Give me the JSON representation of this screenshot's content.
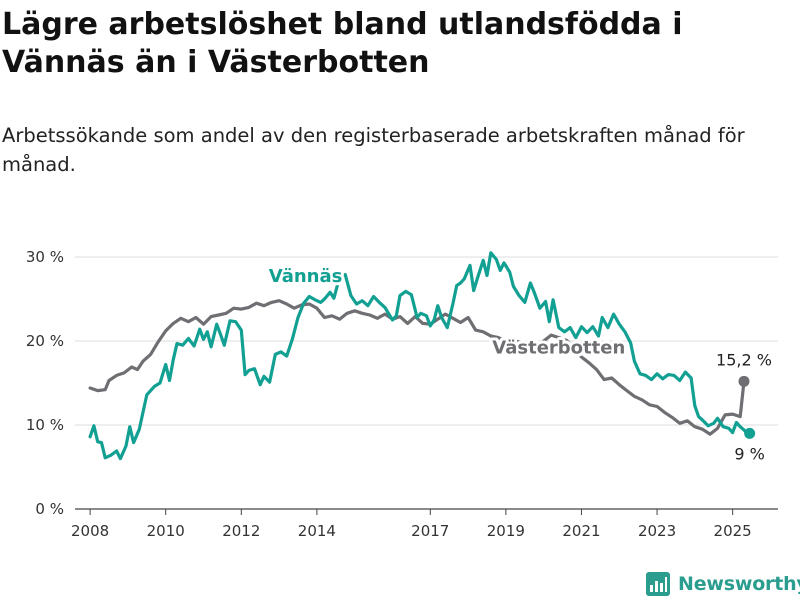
{
  "title": "Lägre arbetslöshet bland utlandsfödda i Vännäs än i Västerbotten",
  "subtitle": "Arbetssökande som andel av den registerbaserade arbetskraften månad för månad.",
  "brand": {
    "name": "Newsworthy",
    "icon": "newsworthy-logo-icon",
    "color": "#2a9d8f"
  },
  "chart_data": {
    "type": "line",
    "title": "Lägre arbetslöshet bland utlandsfödda i Vännäs än i Västerbotten",
    "subtitle": "Arbetssökande som andel av den registerbaserade arbetskraften månad för månad.",
    "xlabel": "",
    "ylabel": "",
    "xlim": [
      2007.6,
      2026.2
    ],
    "ylim": [
      0,
      30
    ],
    "x_ticks": [
      2008,
      2010,
      2012,
      2014,
      2017,
      2019,
      2021,
      2023,
      2025
    ],
    "y_ticks": [
      {
        "value": 0,
        "label": "0 %"
      },
      {
        "value": 10,
        "label": "10 %"
      },
      {
        "value": 20,
        "label": "20 %"
      },
      {
        "value": 30,
        "label": "30 %"
      }
    ],
    "grid": true,
    "series": [
      {
        "name": "Västerbotten",
        "color": "#6e6e73",
        "end_label": "15,2 %",
        "points": [
          [
            2008.0,
            14.4
          ],
          [
            2008.2,
            14.1
          ],
          [
            2008.4,
            14.2
          ],
          [
            2008.5,
            15.3
          ],
          [
            2008.7,
            15.9
          ],
          [
            2008.9,
            16.2
          ],
          [
            2009.1,
            16.9
          ],
          [
            2009.25,
            16.6
          ],
          [
            2009.4,
            17.6
          ],
          [
            2009.6,
            18.4
          ],
          [
            2009.8,
            19.9
          ],
          [
            2010.0,
            21.2
          ],
          [
            2010.2,
            22.1
          ],
          [
            2010.4,
            22.7
          ],
          [
            2010.6,
            22.3
          ],
          [
            2010.8,
            22.8
          ],
          [
            2011.0,
            22.0
          ],
          [
            2011.2,
            22.9
          ],
          [
            2011.4,
            23.1
          ],
          [
            2011.6,
            23.3
          ],
          [
            2011.8,
            23.9
          ],
          [
            2012.0,
            23.8
          ],
          [
            2012.2,
            24.0
          ],
          [
            2012.4,
            24.5
          ],
          [
            2012.6,
            24.2
          ],
          [
            2012.8,
            24.6
          ],
          [
            2013.0,
            24.8
          ],
          [
            2013.2,
            24.4
          ],
          [
            2013.4,
            23.9
          ],
          [
            2013.6,
            24.3
          ],
          [
            2013.8,
            24.4
          ],
          [
            2014.0,
            23.9
          ],
          [
            2014.2,
            22.8
          ],
          [
            2014.4,
            23.0
          ],
          [
            2014.6,
            22.6
          ],
          [
            2014.8,
            23.3
          ],
          [
            2015.0,
            23.6
          ],
          [
            2015.2,
            23.3
          ],
          [
            2015.4,
            23.1
          ],
          [
            2015.6,
            22.7
          ],
          [
            2015.8,
            23.2
          ],
          [
            2016.0,
            22.6
          ],
          [
            2016.2,
            22.9
          ],
          [
            2016.4,
            22.1
          ],
          [
            2016.6,
            22.9
          ],
          [
            2016.8,
            22.1
          ],
          [
            2017.0,
            22.0
          ],
          [
            2017.2,
            22.6
          ],
          [
            2017.4,
            23.2
          ],
          [
            2017.6,
            22.7
          ],
          [
            2017.8,
            22.2
          ],
          [
            2018.0,
            22.8
          ],
          [
            2018.2,
            21.3
          ],
          [
            2018.4,
            21.1
          ],
          [
            2018.6,
            20.6
          ],
          [
            2018.8,
            20.4
          ],
          [
            2019.0,
            20.0
          ],
          [
            2019.2,
            20.1
          ],
          [
            2019.4,
            19.8
          ],
          [
            2019.6,
            19.3
          ],
          [
            2019.8,
            19.5
          ],
          [
            2020.0,
            20.0
          ],
          [
            2020.2,
            20.7
          ],
          [
            2020.4,
            20.4
          ],
          [
            2020.6,
            20.1
          ],
          [
            2020.8,
            19.2
          ],
          [
            2021.0,
            18.1
          ],
          [
            2021.2,
            17.4
          ],
          [
            2021.4,
            16.6
          ],
          [
            2021.6,
            15.4
          ],
          [
            2021.8,
            15.6
          ],
          [
            2022.0,
            14.8
          ],
          [
            2022.2,
            14.1
          ],
          [
            2022.4,
            13.4
          ],
          [
            2022.6,
            13.0
          ],
          [
            2022.8,
            12.4
          ],
          [
            2023.0,
            12.2
          ],
          [
            2023.2,
            11.5
          ],
          [
            2023.4,
            10.9
          ],
          [
            2023.6,
            10.2
          ],
          [
            2023.8,
            10.5
          ],
          [
            2024.0,
            9.8
          ],
          [
            2024.2,
            9.5
          ],
          [
            2024.4,
            8.9
          ],
          [
            2024.6,
            9.6
          ],
          [
            2024.8,
            11.2
          ],
          [
            2025.0,
            11.3
          ],
          [
            2025.2,
            11.0
          ],
          [
            2025.3,
            15.2
          ]
        ]
      },
      {
        "name": "Vännäs",
        "color": "#12a093",
        "end_label": "9 %",
        "points": [
          [
            2008.0,
            8.6
          ],
          [
            2008.1,
            9.9
          ],
          [
            2008.2,
            8.0
          ],
          [
            2008.3,
            7.9
          ],
          [
            2008.4,
            6.1
          ],
          [
            2008.55,
            6.4
          ],
          [
            2008.7,
            6.9
          ],
          [
            2008.8,
            6.0
          ],
          [
            2008.95,
            7.5
          ],
          [
            2009.05,
            9.8
          ],
          [
            2009.15,
            7.9
          ],
          [
            2009.3,
            9.5
          ],
          [
            2009.5,
            13.6
          ],
          [
            2009.7,
            14.6
          ],
          [
            2009.85,
            15.0
          ],
          [
            2010.0,
            17.2
          ],
          [
            2010.1,
            15.3
          ],
          [
            2010.2,
            17.8
          ],
          [
            2010.3,
            19.7
          ],
          [
            2010.45,
            19.5
          ],
          [
            2010.6,
            20.3
          ],
          [
            2010.75,
            19.4
          ],
          [
            2010.9,
            21.4
          ],
          [
            2011.0,
            20.2
          ],
          [
            2011.1,
            21.1
          ],
          [
            2011.2,
            19.3
          ],
          [
            2011.35,
            22.0
          ],
          [
            2011.45,
            20.8
          ],
          [
            2011.55,
            19.5
          ],
          [
            2011.7,
            22.4
          ],
          [
            2011.85,
            22.3
          ],
          [
            2012.0,
            21.3
          ],
          [
            2012.1,
            16.0
          ],
          [
            2012.2,
            16.5
          ],
          [
            2012.35,
            16.7
          ],
          [
            2012.5,
            14.8
          ],
          [
            2012.6,
            15.8
          ],
          [
            2012.75,
            15.1
          ],
          [
            2012.9,
            18.4
          ],
          [
            2013.05,
            18.7
          ],
          [
            2013.2,
            18.2
          ],
          [
            2013.35,
            20.2
          ],
          [
            2013.5,
            22.8
          ],
          [
            2013.65,
            24.5
          ],
          [
            2013.8,
            25.3
          ],
          [
            2013.95,
            24.9
          ],
          [
            2014.1,
            24.6
          ],
          [
            2014.2,
            25.0
          ],
          [
            2014.35,
            25.8
          ],
          [
            2014.45,
            25.1
          ],
          [
            2014.6,
            27.6
          ],
          [
            2014.75,
            27.9
          ],
          [
            2014.9,
            25.4
          ],
          [
            2015.05,
            24.4
          ],
          [
            2015.2,
            24.8
          ],
          [
            2015.35,
            24.2
          ],
          [
            2015.5,
            25.3
          ],
          [
            2015.65,
            24.6
          ],
          [
            2015.8,
            24.0
          ],
          [
            2016.0,
            22.5
          ],
          [
            2016.1,
            23.0
          ],
          [
            2016.2,
            25.4
          ],
          [
            2016.35,
            25.9
          ],
          [
            2016.5,
            25.5
          ],
          [
            2016.65,
            22.8
          ],
          [
            2016.75,
            23.3
          ],
          [
            2016.9,
            23.0
          ],
          [
            2017.0,
            21.8
          ],
          [
            2017.1,
            22.5
          ],
          [
            2017.2,
            24.2
          ],
          [
            2017.3,
            22.8
          ],
          [
            2017.45,
            21.6
          ],
          [
            2017.6,
            24.5
          ],
          [
            2017.7,
            26.6
          ],
          [
            2017.8,
            26.9
          ],
          [
            2017.9,
            27.4
          ],
          [
            2018.05,
            29.0
          ],
          [
            2018.15,
            26.0
          ],
          [
            2018.25,
            27.5
          ],
          [
            2018.4,
            29.6
          ],
          [
            2018.5,
            27.8
          ],
          [
            2018.6,
            30.5
          ],
          [
            2018.75,
            29.7
          ],
          [
            2018.85,
            28.4
          ],
          [
            2018.95,
            29.3
          ],
          [
            2019.1,
            28.2
          ],
          [
            2019.2,
            26.5
          ],
          [
            2019.35,
            25.4
          ],
          [
            2019.5,
            24.6
          ],
          [
            2019.65,
            26.9
          ],
          [
            2019.75,
            25.8
          ],
          [
            2019.9,
            23.9
          ],
          [
            2020.05,
            24.7
          ],
          [
            2020.15,
            22.3
          ],
          [
            2020.25,
            24.9
          ],
          [
            2020.4,
            21.6
          ],
          [
            2020.55,
            21.1
          ],
          [
            2020.7,
            21.6
          ],
          [
            2020.85,
            20.4
          ],
          [
            2021.0,
            21.7
          ],
          [
            2021.15,
            21.0
          ],
          [
            2021.3,
            21.7
          ],
          [
            2021.45,
            20.6
          ],
          [
            2021.55,
            22.8
          ],
          [
            2021.7,
            21.6
          ],
          [
            2021.85,
            23.2
          ],
          [
            2022.0,
            22.0
          ],
          [
            2022.15,
            21.1
          ],
          [
            2022.3,
            19.8
          ],
          [
            2022.4,
            17.6
          ],
          [
            2022.55,
            16.1
          ],
          [
            2022.7,
            15.9
          ],
          [
            2022.85,
            15.4
          ],
          [
            2023.0,
            16.1
          ],
          [
            2023.15,
            15.5
          ],
          [
            2023.3,
            16.0
          ],
          [
            2023.45,
            15.9
          ],
          [
            2023.6,
            15.3
          ],
          [
            2023.75,
            16.3
          ],
          [
            2023.9,
            15.6
          ],
          [
            2024.0,
            12.3
          ],
          [
            2024.1,
            11.0
          ],
          [
            2024.2,
            10.6
          ],
          [
            2024.35,
            9.9
          ],
          [
            2024.5,
            10.2
          ],
          [
            2024.6,
            10.8
          ],
          [
            2024.75,
            9.8
          ],
          [
            2024.9,
            9.6
          ],
          [
            2025.0,
            9.1
          ],
          [
            2025.1,
            10.3
          ],
          [
            2025.2,
            9.8
          ],
          [
            2025.3,
            9.4
          ],
          [
            2025.4,
            9.0
          ],
          [
            2025.45,
            9.0
          ]
        ]
      }
    ]
  }
}
